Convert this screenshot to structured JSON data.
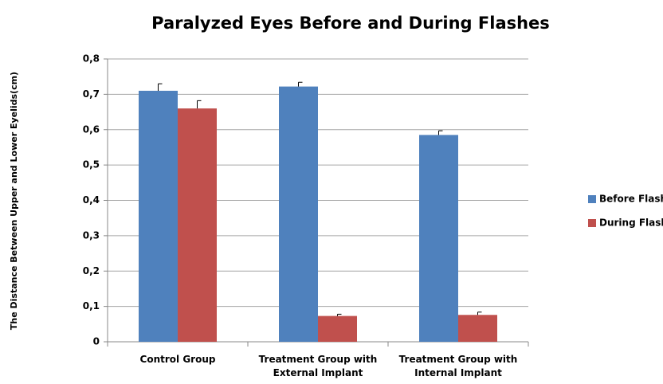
{
  "chart_data": {
    "type": "bar",
    "title": "Paralyzed Eyes Before and During Flashes",
    "y_label": "The Distance Between Upper and Lower Eyelids(cm)",
    "categories": [
      "Control Group",
      "Treatment Group with External Implant",
      "Treatment Group with Internal Implant"
    ],
    "series": [
      {
        "name": "Before Flash",
        "color": "#4f81bd",
        "values": [
          0.71,
          0.722,
          0.585
        ],
        "errors": [
          0.02,
          0.012,
          0.012
        ]
      },
      {
        "name": "During Flash",
        "color": "#c0504d",
        "values": [
          0.66,
          0.073,
          0.076
        ],
        "errors": [
          0.022,
          0.005,
          0.008
        ]
      }
    ],
    "ylim": [
      0,
      0.8
    ],
    "yticks": [
      0,
      {
        "value": 0.1,
        "label": "0,1"
      },
      {
        "value": 0.2,
        "label": "0,2"
      },
      {
        "value": 0.3,
        "label": "0,3"
      },
      {
        "value": 0.4,
        "label": "0,4"
      },
      {
        "value": 0.5,
        "label": "0,5"
      },
      {
        "value": 0.6,
        "label": "0,6"
      },
      {
        "value": 0.7,
        "label": "0,7"
      },
      {
        "value": 0.8,
        "label": "0,8"
      }
    ],
    "grid": true,
    "legend": "right"
  }
}
